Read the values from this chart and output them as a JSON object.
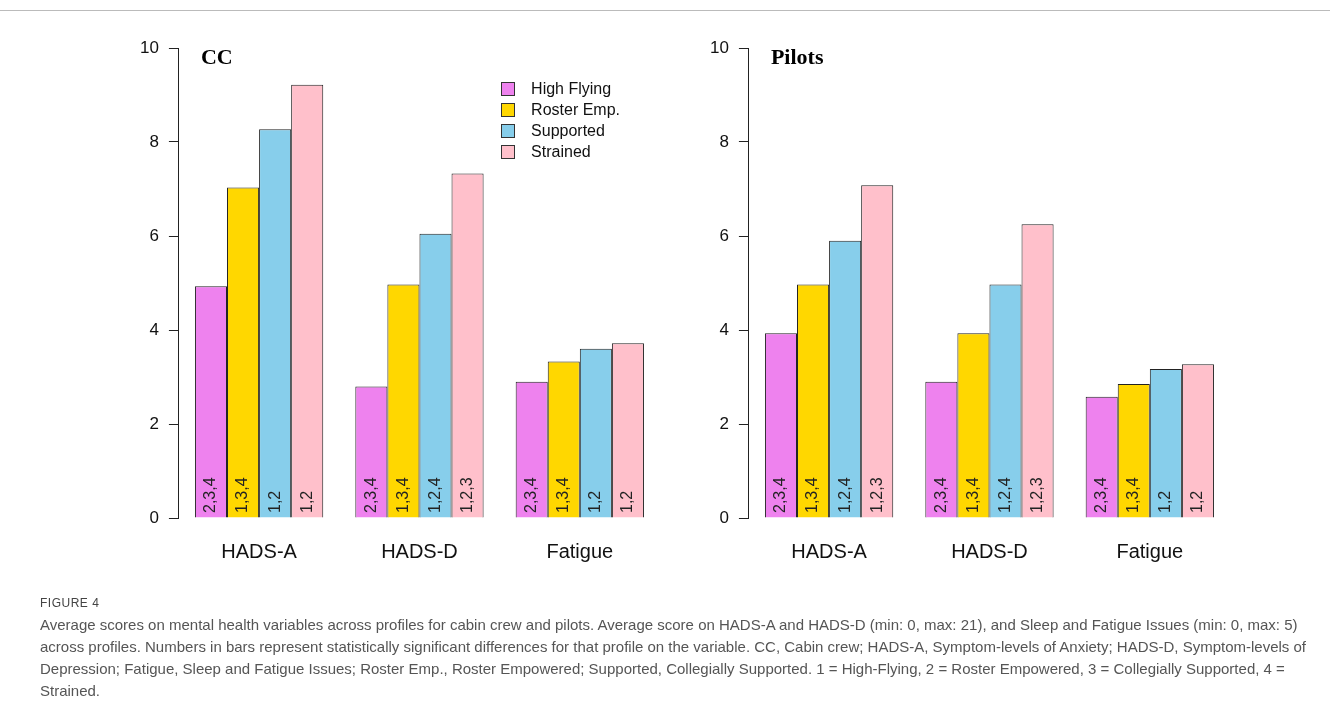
{
  "chart_data": [
    {
      "type": "bar",
      "title": "CC",
      "categories": [
        "HADS-A",
        "HADS-D",
        "Fatigue"
      ],
      "ylim": [
        0,
        10
      ],
      "yticks": [
        0,
        2,
        4,
        6,
        8,
        10
      ],
      "grid": false,
      "legend": "top right",
      "series": [
        {
          "name": "High Flying",
          "color": "#ee82ee",
          "values": [
            4.93,
            2.8,
            2.9
          ]
        },
        {
          "name": "Roster Emp.",
          "color": "#ffd700",
          "values": [
            7.03,
            4.97,
            3.33
          ]
        },
        {
          "name": "Supported",
          "color": "#87ceeb",
          "values": [
            8.27,
            6.05,
            3.6
          ]
        },
        {
          "name": "Strained",
          "color": "#ffc0cb",
          "values": [
            9.22,
            7.33,
            3.72
          ]
        }
      ],
      "annotations": [
        "FIGURE 4",
        "Average scores on mental health variables across profiles for cabin crew and pilots. Average score on HADS-A and HADS-D (min: 0, max: 21), and Sleep and Fatigue Issues (min: 0, max: 5) across profiles. Numbers in bars represent statistically significant differences for that profile on the variable. CC, Cabin crew; HADS-A, Symptom-levels of Anxiety; HADS-D, Symptom-levels of Depression; Fatigue, Sleep and Fatigue Issues; Roster Emp., Roster Empowered; Supported, Collegially Supported. 1 = High-Flying, 2 = Roster Empowered, 3 = Collegially Supported, 4 = Strained.",
        {
          "text": "2,3,4",
          "x": "HADS-A",
          "y": 0
        },
        {
          "text": "2,3,4",
          "x": "HADS-D",
          "y": 0
        },
        {
          "text": "2,3,4",
          "x": "Fatigue",
          "y": 0
        },
        {
          "text": "1,3,4",
          "x": "HADS-A",
          "y": 0
        },
        {
          "text": "1,3,4",
          "x": "HADS-D",
          "y": 0
        },
        {
          "text": "1,3,4",
          "x": "Fatigue",
          "y": 0
        },
        {
          "text": "1,2",
          "x": "HADS-A",
          "y": 0
        },
        {
          "text": "1,2,4",
          "x": "HADS-D",
          "y": 0
        },
        {
          "text": "1,2",
          "x": "Fatigue",
          "y": 0
        },
        {
          "text": "1,2",
          "x": "HADS-A",
          "y": 0
        },
        {
          "text": "1,2,3",
          "x": "HADS-D",
          "y": 0
        },
        {
          "text": "1,2",
          "x": "Fatigue",
          "y": 0
        }
      ]
    },
    {
      "type": "bar",
      "title": "Pilots",
      "categories": [
        "HADS-A",
        "HADS-D",
        "Fatigue"
      ],
      "ylim": [
        0,
        10
      ],
      "yticks": [
        0,
        2,
        4,
        6,
        8,
        10
      ],
      "grid": false,
      "series": [
        {
          "color": "#ee82ee",
          "values": [
            3.93,
            2.9,
            2.58
          ]
        },
        {
          "color": "#ffd700",
          "values": [
            4.97,
            3.93,
            2.85
          ]
        },
        {
          "color": "#87ceeb",
          "values": [
            5.9,
            4.97,
            3.17
          ]
        },
        {
          "color": "#ffc0cb",
          "values": [
            7.08,
            6.25,
            3.27
          ]
        }
      ],
      "annotations": [
        {
          "text": "2,3,4",
          "x": "HADS-A",
          "y": 0
        },
        {
          "text": "2,3,4",
          "x": "HADS-D",
          "y": 0
        },
        {
          "text": "2,3,4",
          "x": "Fatigue",
          "y": 0
        },
        {
          "text": "1,3,4",
          "x": "HADS-A",
          "y": 0
        },
        {
          "text": "1,3,4",
          "x": "HADS-D",
          "y": 0
        },
        {
          "text": "1,3,4",
          "x": "Fatigue",
          "y": 0
        },
        {
          "text": "1,2,4",
          "x": "HADS-A",
          "y": 0
        },
        {
          "text": "1,2,4",
          "x": "HADS-D",
          "y": 0
        },
        {
          "text": "1,2",
          "x": "Fatigue",
          "y": 0
        },
        {
          "text": "1,2,3",
          "x": "HADS-A",
          "y": 0
        },
        {
          "text": "1,2,3",
          "x": "HADS-D",
          "y": 0
        },
        {
          "text": "1,2",
          "x": "Fatigue",
          "y": 0
        }
      ]
    }
  ]
}
